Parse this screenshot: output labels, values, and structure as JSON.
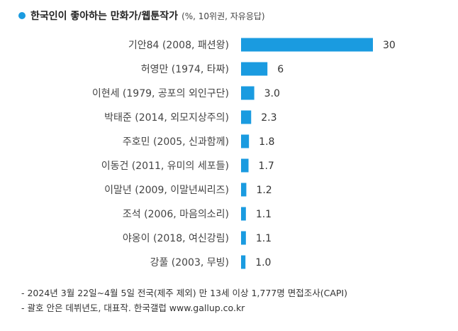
{
  "header": {
    "title": "한국인이 좋아하는 만화가/웹툰작가",
    "subtitle": "(%, 10위권, 자유응답)"
  },
  "colors": {
    "bar": "#1a9be0",
    "dot": "#1a9be0"
  },
  "chart_data": {
    "type": "bar",
    "orientation": "horizontal",
    "title": "한국인이 좋아하는 만화가/웹툰작가",
    "subtitle": "(%, 10위권, 자유응답)",
    "categories": [
      "기안84 (2008, 패션왕)",
      "허영만 (1974, 타짜)",
      "이현세 (1979, 공포의 외인구단)",
      "박태준 (2014, 외모지상주의)",
      "주호민 (2005, 신과함께)",
      "이동건 (2011, 유미의 세포들)",
      "이말년 (2009, 이말년씨리즈)",
      "조석 (2006, 마음의소리)",
      "야옹이 (2018, 여신강림)",
      "강풀 (2003, 무빙)"
    ],
    "values": [
      30,
      6,
      3.0,
      2.3,
      1.8,
      1.7,
      1.2,
      1.1,
      1.1,
      1.0
    ],
    "value_labels": [
      "30",
      "6",
      "3.0",
      "2.3",
      "1.8",
      "1.7",
      "1.2",
      "1.1",
      "1.1",
      "1.0"
    ],
    "xlim": [
      0,
      30
    ],
    "grid": false,
    "legend": "none"
  },
  "footnotes": [
    "- 2024년 3월 22일~4월 5일 전국(제주 제외) 만 13세 이상 1,777명 면접조사(CAPI)",
    "- 괄호 안은 데뷔년도, 대표작. 한국갤럽 www.gallup.co.kr"
  ]
}
